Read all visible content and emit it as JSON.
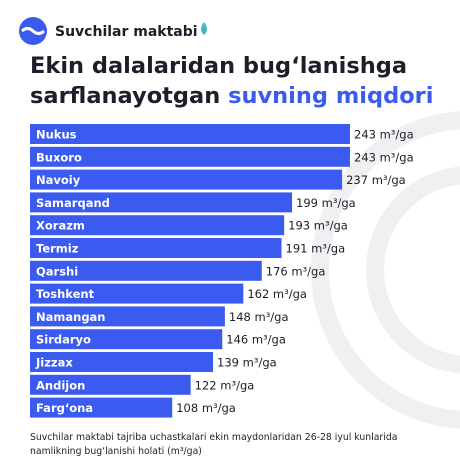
{
  "brand": "Suvchilar maktabi",
  "chart_data": {
    "type": "bar",
    "orientation": "horizontal",
    "title_lines": [
      "Ekin dalalaridan bug‘lanishga",
      "sarflanayotgan",
      "suvning miqdori"
    ],
    "categories": [
      "Nukus",
      "Buxoro",
      "Navoiy",
      "Samarqand",
      "Xorazm",
      "Termiz",
      "Qarshi",
      "Toshkent",
      "Namangan",
      "Sirdaryo",
      "Jizzax",
      "Andijon",
      "Farg‘ona"
    ],
    "values": [
      243,
      243,
      237,
      199,
      193,
      191,
      176,
      162,
      148,
      146,
      139,
      122,
      108
    ],
    "value_labels": [
      "243 m³/ga",
      "243 m³/ga",
      "237 m³/ga",
      "199 m³/ga",
      "193 m³/ga",
      "191 m³/ga",
      "176 m³/ga",
      "162 m³/ga",
      "148 m³/ga",
      "146 m³/ga",
      "139 m³/ga",
      "122 m³/ga",
      "108 m³/ga"
    ],
    "color": "#3b5bf0",
    "footnote": [
      "Suvchilar maktabi tajriba uchastkalari ekin maydonlaridan 26-28 iyul kunlarida",
      "namlikning bug‘lanishi holati (m³/ga)"
    ]
  }
}
